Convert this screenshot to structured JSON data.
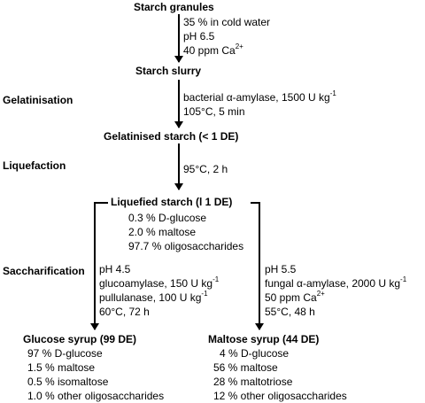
{
  "nodes": {
    "granules": "Starch granules",
    "slurry": "Starch slurry",
    "gelatinised": "Gelatinised starch (< 1 DE)",
    "liquefied": "Liquefied starch (l 1 DE)",
    "glucose_syrup": "Glucose syrup (99 DE)",
    "maltose_syrup": "Maltose syrup (44 DE)"
  },
  "stages": {
    "gelatinisation": "Gelatinisation",
    "liquefaction": "Liquefaction",
    "saccharification": "Saccharification"
  },
  "conditions": {
    "slurry_1": "35 % in cold water",
    "slurry_2": "pH 6.5",
    "slurry_3": "40 ppm Ca",
    "slurry_3_sup": "2+",
    "gel_1": "bacterial α-amylase, 1500 U kg",
    "gel_1_sup": "-1",
    "gel_2": "105°C, 5 min",
    "liq_1": "95°C, 2 h",
    "liq_comp_1": "0.3 % D-glucose",
    "liq_comp_2": "2.0 % maltose",
    "liq_comp_3": "97.7 % oligosaccharides",
    "left_1": "pH 4.5",
    "left_2": "glucoamylase, 150 U kg",
    "left_2_sup": "-1",
    "left_3": "pullulanase, 100 U kg",
    "left_3_sup": "-1",
    "left_4": "60°C, 72 h",
    "right_1": "pH 5.5",
    "right_2": "fungal α-amylase, 2000 U kg",
    "right_2_sup": "-1",
    "right_3": "50 ppm Ca",
    "right_3_sup": "2+",
    "right_4": "55°C, 48 h"
  },
  "glucose_composition": [
    "97 % D-glucose",
    "1.5 % maltose",
    "0.5 % isomaltose",
    "1.0 % other oligosaccharides"
  ],
  "maltose_composition": [
    "4 % D-glucose",
    "56 % maltose",
    "28 % maltotriose",
    "12 % other oligosaccharides"
  ]
}
